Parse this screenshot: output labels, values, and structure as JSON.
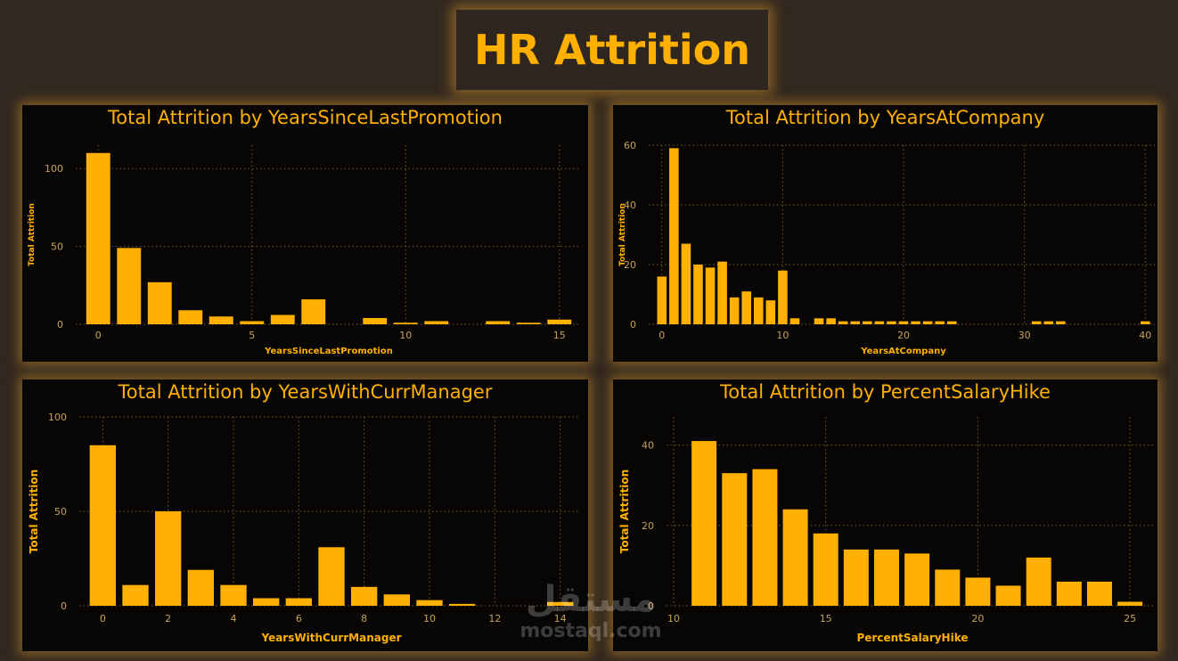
{
  "page": {
    "title": "HR Attrition"
  },
  "watermark": {
    "logo": "مستقل",
    "text": "mostaql.com"
  },
  "chart_data": [
    {
      "type": "bar",
      "title": "Total Attrition by YearsSinceLastPromotion",
      "xlabel": "YearsSinceLastPromotion",
      "ylabel": "Total Attrition",
      "x": [
        0,
        1,
        2,
        3,
        4,
        5,
        6,
        7,
        9,
        10,
        11,
        13,
        14,
        15
      ],
      "values": [
        110,
        49,
        27,
        9,
        5,
        2,
        6,
        16,
        4,
        1,
        2,
        2,
        1,
        3
      ],
      "xticks": [
        0,
        5,
        10,
        15
      ],
      "yticks": [
        0,
        50,
        100
      ],
      "xlim": [
        -0.5,
        15.5
      ],
      "ylim": [
        0,
        115
      ],
      "grid": true
    },
    {
      "type": "bar",
      "title": "Total Attrition by YearsAtCompany",
      "xlabel": "YearsAtCompany",
      "ylabel": "Total Attrition",
      "x": [
        0,
        1,
        2,
        3,
        4,
        5,
        6,
        7,
        8,
        9,
        10,
        11,
        13,
        14,
        15,
        16,
        17,
        18,
        19,
        20,
        21,
        22,
        23,
        24,
        31,
        32,
        33,
        40
      ],
      "values": [
        16,
        59,
        27,
        20,
        19,
        21,
        9,
        11,
        9,
        8,
        18,
        2,
        2,
        2,
        1,
        1,
        1,
        1,
        1,
        1,
        1,
        1,
        1,
        1,
        1,
        1,
        1,
        1
      ],
      "xticks": [
        0,
        10,
        20,
        30,
        40
      ],
      "yticks": [
        0,
        20,
        40,
        60
      ],
      "xlim": [
        -0.5,
        40.5
      ],
      "ylim": [
        0,
        60
      ],
      "grid": true
    },
    {
      "type": "bar",
      "title": "Total Attrition by YearsWithCurrManager",
      "xlabel": "YearsWithCurrManager",
      "ylabel": "Total Attrition",
      "x": [
        0,
        1,
        2,
        3,
        4,
        5,
        6,
        7,
        8,
        9,
        10,
        11,
        14
      ],
      "values": [
        85,
        11,
        50,
        19,
        11,
        4,
        4,
        31,
        10,
        6,
        3,
        1,
        2
      ],
      "xticks": [
        0,
        2,
        4,
        6,
        8,
        10,
        12,
        14
      ],
      "yticks": [
        0,
        50,
        100
      ],
      "xlim": [
        -0.5,
        14.5
      ],
      "ylim": [
        0,
        100
      ],
      "grid": true
    },
    {
      "type": "bar",
      "title": "Total Attrition by PercentSalaryHike",
      "xlabel": "PercentSalaryHike",
      "ylabel": "Total Attrition",
      "x": [
        11,
        12,
        13,
        14,
        15,
        16,
        17,
        18,
        19,
        20,
        21,
        22,
        23,
        24,
        25
      ],
      "values": [
        41,
        33,
        34,
        24,
        18,
        14,
        14,
        13,
        9,
        7,
        5,
        12,
        6,
        6,
        1
      ],
      "xticks": [
        10,
        15,
        20,
        25
      ],
      "yticks": [
        0,
        20,
        40
      ],
      "xlim": [
        10,
        25.7
      ],
      "ylim": [
        0,
        47
      ],
      "grid": true
    }
  ]
}
